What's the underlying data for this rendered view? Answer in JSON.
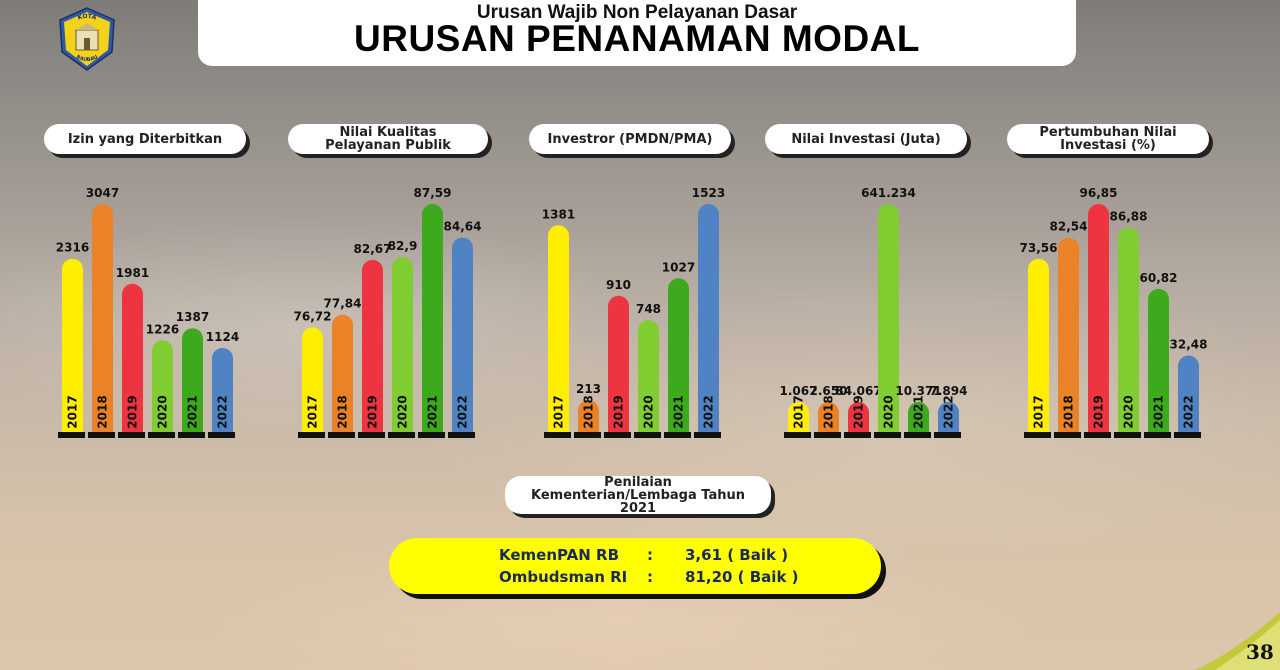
{
  "header": {
    "subtitle": "Urusan Wajib Non Pelayanan Dasar",
    "title": "URUSAN PENANAMAN MODAL"
  },
  "logo": {
    "top_text": "KOTA",
    "bottom_text": "BAUBAU"
  },
  "colors": {
    "year_colors": [
      "#ffee00",
      "#ea8228",
      "#ee3440",
      "#7fcd30",
      "#3daa1e",
      "#4f83c4"
    ],
    "pill_bg": "#ffffff",
    "highlight": "#ffff00"
  },
  "chart_data": [
    {
      "type": "bar",
      "title": "Izin yang Diterbitkan",
      "categories": [
        "2017",
        "2018",
        "2019",
        "2020",
        "2021",
        "2022"
      ],
      "values": [
        2316,
        3047,
        1981,
        1226,
        1387,
        1124
      ],
      "labels": [
        "2316",
        "3047",
        "1981",
        "1226",
        "1387",
        "1124"
      ],
      "ylim": [
        0,
        3047
      ]
    },
    {
      "type": "bar",
      "title": "Nilai Kualitas Pelayanan Publik",
      "categories": [
        "2017",
        "2018",
        "2019",
        "2020",
        "2021",
        "2022"
      ],
      "values": [
        76.72,
        77.84,
        82.67,
        82.9,
        87.59,
        84.64
      ],
      "labels": [
        "76,72",
        "77,84",
        "82,67",
        "82,9",
        "87,59",
        "84,64"
      ],
      "ylim": [
        67.5,
        87.59
      ]
    },
    {
      "type": "bar",
      "title": "Investror (PMDN/PMA)",
      "categories": [
        "2017",
        "2018",
        "2019",
        "2020",
        "2021",
        "2022"
      ],
      "values": [
        1381,
        213,
        910,
        748,
        1027,
        1523
      ],
      "labels": [
        "1381",
        "213",
        "910",
        "748",
        "1027",
        "1523"
      ],
      "ylim": [
        0,
        1523
      ]
    },
    {
      "type": "bar",
      "title": "Nilai Investasi (Juta)",
      "categories": [
        "2017",
        "2018",
        "2019",
        "2020",
        "2021",
        "2022"
      ],
      "values": [
        1067,
        2650,
        84067,
        641234,
        10371,
        7894
      ],
      "labels": [
        "1.067",
        "2.650",
        "84.067",
        "641.234",
        "10.371",
        "7.894"
      ],
      "ylim": [
        0,
        641234
      ]
    },
    {
      "type": "bar",
      "title": "Pertumbuhan Nilai Investasi (%)",
      "categories": [
        "2017",
        "2018",
        "2019",
        "2020",
        "2021",
        "2022"
      ],
      "values": [
        73.56,
        82.54,
        96.85,
        86.88,
        60.82,
        32.48
      ],
      "labels": [
        "73,56",
        "82,54",
        "96,85",
        "86,88",
        "60,82",
        "32,48"
      ],
      "ylim": [
        0,
        96.85
      ]
    }
  ],
  "penilaian": {
    "title": "Penilaian Kementerian/Lembaga Tahun 2021",
    "rows": [
      {
        "name": "KemenPAN RB",
        "sep": ":",
        "value": "3,61 ( Baik )"
      },
      {
        "name": "Ombudsman RI",
        "sep": ":",
        "value": "81,20 ( Baik )"
      }
    ]
  },
  "page_number": "38"
}
